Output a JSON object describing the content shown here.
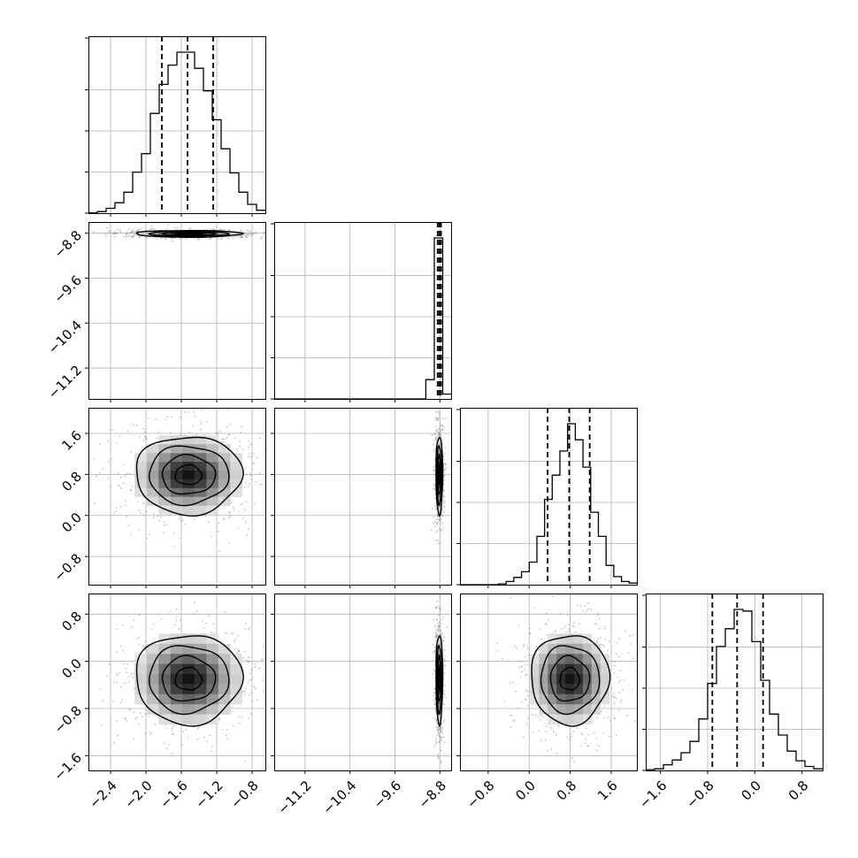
{
  "chart_data": {
    "type": "corner",
    "n_params": 4,
    "grid": true,
    "colors": {
      "line": "#000000",
      "grid": "#b0b0b0",
      "points": "#808080",
      "background": "#ffffff"
    },
    "axes": [
      {
        "range": [
          -2.65,
          -0.65
        ],
        "ticks": [
          -2.4,
          -2.0,
          -1.6,
          -1.2,
          -0.8
        ],
        "tick_labels": [
          "−2.4",
          "−2.0",
          "−1.6",
          "−1.2",
          "−0.8"
        ]
      },
      {
        "range": [
          -11.75,
          -8.6
        ],
        "ticks": [
          -11.2,
          -10.4,
          -9.6,
          -8.8
        ],
        "tick_labels": [
          "−11.2",
          "−10.4",
          "−9.6",
          "−8.8"
        ]
      },
      {
        "range": [
          -1.35,
          2.1
        ],
        "ticks": [
          -0.8,
          0.0,
          0.8,
          1.6
        ],
        "tick_labels": [
          "−0.8",
          "0.0",
          "0.8",
          "1.6"
        ]
      },
      {
        "range": [
          -1.85,
          1.15
        ],
        "ticks": [
          -1.6,
          -0.8,
          0.0,
          0.8
        ],
        "tick_labels": [
          "−1.6",
          "−0.8",
          "0.0",
          "0.8"
        ]
      }
    ],
    "histograms": [
      {
        "param": 0,
        "bin_edges": [
          -2.65,
          -2.55,
          -2.45,
          -2.35,
          -2.25,
          -2.15,
          -2.05,
          -1.95,
          -1.85,
          -1.75,
          -1.65,
          -1.55,
          -1.45,
          -1.35,
          -1.25,
          -1.15,
          -1.05,
          -0.95,
          -0.85,
          -0.75,
          -0.65
        ],
        "counts": [
          0.002,
          0.01,
          0.03,
          0.065,
          0.13,
          0.255,
          0.37,
          0.62,
          0.8,
          0.92,
          1.0,
          1.0,
          0.9,
          0.76,
          0.58,
          0.4,
          0.25,
          0.13,
          0.055,
          0.018
        ],
        "quantiles": [
          -1.82,
          -1.53,
          -1.24
        ]
      },
      {
        "param": 1,
        "bin_edges": [
          -11.75,
          -11.6,
          -11.45,
          -11.3,
          -11.15,
          -11.0,
          -10.85,
          -10.7,
          -10.55,
          -10.4,
          -10.25,
          -10.1,
          -9.95,
          -9.8,
          -9.65,
          -9.5,
          -9.35,
          -9.2,
          -9.05,
          -8.9,
          -8.75,
          -8.6
        ],
        "counts": [
          0,
          0,
          0,
          0,
          0,
          0,
          0,
          0,
          0,
          0,
          0,
          0,
          0,
          0,
          0,
          0,
          0,
          0,
          0.12,
          1.0,
          0.03
        ],
        "quantiles": [
          -8.84,
          -8.81,
          -8.78
        ]
      },
      {
        "param": 2,
        "bin_edges": [
          -1.35,
          -1.2,
          -1.05,
          -0.9,
          -0.75,
          -0.6,
          -0.45,
          -0.3,
          -0.15,
          0.0,
          0.15,
          0.3,
          0.45,
          0.6,
          0.75,
          0.9,
          1.05,
          1.2,
          1.35,
          1.5,
          1.65,
          1.8,
          1.95,
          2.1
        ],
        "counts": [
          0,
          0,
          0,
          0,
          0,
          0.005,
          0.02,
          0.045,
          0.08,
          0.14,
          0.3,
          0.53,
          0.68,
          0.83,
          1.0,
          0.9,
          0.73,
          0.45,
          0.3,
          0.12,
          0.05,
          0.02,
          0.01
        ],
        "quantiles": [
          0.36,
          0.78,
          1.18
        ]
      },
      {
        "param": 3,
        "bin_edges": [
          -1.85,
          -1.7,
          -1.55,
          -1.4,
          -1.25,
          -1.1,
          -0.95,
          -0.8,
          -0.65,
          -0.5,
          -0.35,
          -0.2,
          -0.05,
          0.1,
          0.25,
          0.4,
          0.55,
          0.7,
          0.85,
          1.0,
          1.15
        ],
        "counts": [
          0.005,
          0.01,
          0.035,
          0.065,
          0.11,
          0.18,
          0.32,
          0.54,
          0.77,
          0.88,
          1.0,
          0.99,
          0.8,
          0.56,
          0.35,
          0.22,
          0.12,
          0.06,
          0.025,
          0.01
        ],
        "quantiles": [
          -0.72,
          -0.3,
          0.14
        ]
      }
    ],
    "pairs": [
      {
        "x": 0,
        "y": 1,
        "center": [
          -1.52,
          -8.81
        ],
        "sigma": [
          0.3,
          0.03
        ]
      },
      {
        "x": 0,
        "y": 2,
        "center": [
          -1.52,
          0.79
        ],
        "sigma": [
          0.3,
          0.38
        ]
      },
      {
        "x": 1,
        "y": 2,
        "center": [
          -8.81,
          0.79
        ],
        "sigma": [
          0.03,
          0.38
        ]
      },
      {
        "x": 0,
        "y": 3,
        "center": [
          -1.52,
          -0.3
        ],
        "sigma": [
          0.3,
          0.38
        ]
      },
      {
        "x": 1,
        "y": 3,
        "center": [
          -8.81,
          -0.3
        ],
        "sigma": [
          0.03,
          0.38
        ]
      },
      {
        "x": 2,
        "y": 3,
        "center": [
          0.79,
          -0.3
        ],
        "sigma": [
          0.38,
          0.38
        ]
      }
    ],
    "contour_levels_sigma": [
      0.5,
      1.0,
      1.5,
      2.0
    ]
  }
}
